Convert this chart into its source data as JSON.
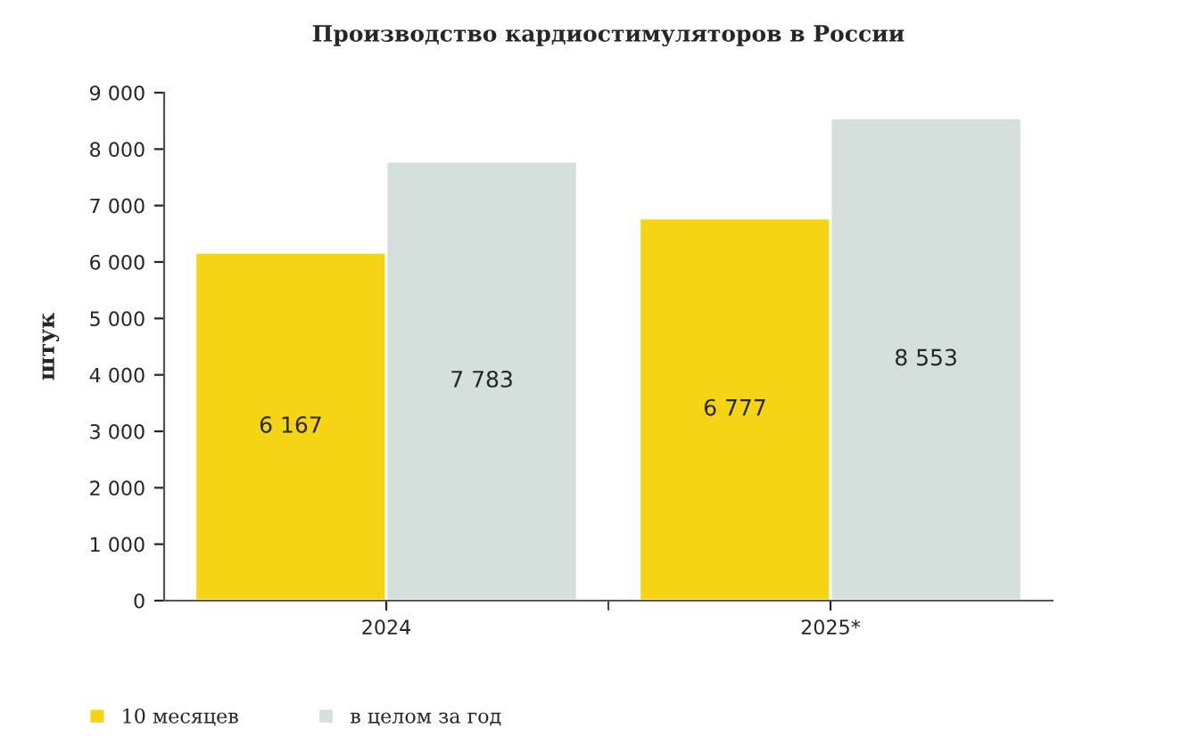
{
  "chart_data": {
    "type": "bar",
    "title": "Производство кардиостимуляторов в России",
    "ylabel": "штук",
    "categories": [
      "2024",
      "2025*"
    ],
    "series": [
      {
        "name": "10 месяцев",
        "color": "#f5d415",
        "values": [
          6167,
          6777
        ],
        "value_labels": [
          "6 167",
          "6 777"
        ]
      },
      {
        "name": "в целом за год",
        "color": "#d5dfdb",
        "values": [
          7783,
          8553
        ],
        "value_labels": [
          "7 783",
          "8 553"
        ]
      }
    ],
    "ylim": [
      0,
      9000
    ],
    "yticks": [
      0,
      {
        "value": 1000,
        "label": "1 000"
      },
      {
        "value": 2000,
        "label": "2 000"
      },
      {
        "value": 3000,
        "label": "3 000"
      },
      {
        "value": 4000,
        "label": "4 000"
      },
      {
        "value": 5000,
        "label": "5 000"
      },
      {
        "value": 6000,
        "label": "6 000"
      },
      {
        "value": 7000,
        "label": "7 000"
      },
      {
        "value": 8000,
        "label": "8 000"
      },
      {
        "value": 9000,
        "label": "9 000"
      }
    ],
    "grid": false,
    "legend": "bottom left"
  }
}
